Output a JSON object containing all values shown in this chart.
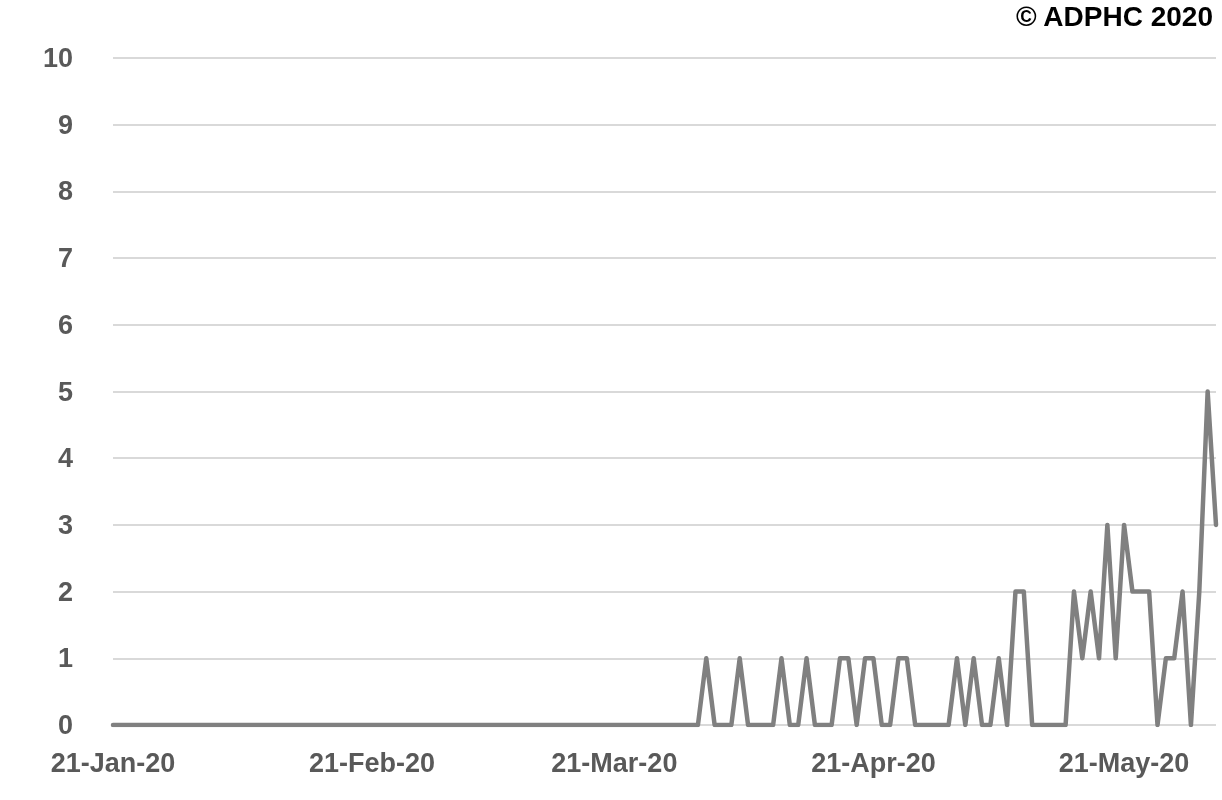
{
  "chart_data": {
    "type": "line",
    "annotations": [
      "© ADPHC 2020"
    ],
    "x": [
      "2020-01-21",
      "2020-01-22",
      "2020-01-23",
      "2020-01-24",
      "2020-01-25",
      "2020-01-26",
      "2020-01-27",
      "2020-01-28",
      "2020-01-29",
      "2020-01-30",
      "2020-01-31",
      "2020-02-01",
      "2020-02-02",
      "2020-02-03",
      "2020-02-04",
      "2020-02-05",
      "2020-02-06",
      "2020-02-07",
      "2020-02-08",
      "2020-02-09",
      "2020-02-10",
      "2020-02-11",
      "2020-02-12",
      "2020-02-13",
      "2020-02-14",
      "2020-02-15",
      "2020-02-16",
      "2020-02-17",
      "2020-02-18",
      "2020-02-19",
      "2020-02-20",
      "2020-02-21",
      "2020-02-22",
      "2020-02-23",
      "2020-02-24",
      "2020-02-25",
      "2020-02-26",
      "2020-02-27",
      "2020-02-28",
      "2020-02-29",
      "2020-03-01",
      "2020-03-02",
      "2020-03-03",
      "2020-03-04",
      "2020-03-05",
      "2020-03-06",
      "2020-03-07",
      "2020-03-08",
      "2020-03-09",
      "2020-03-10",
      "2020-03-11",
      "2020-03-12",
      "2020-03-13",
      "2020-03-14",
      "2020-03-15",
      "2020-03-16",
      "2020-03-17",
      "2020-03-18",
      "2020-03-19",
      "2020-03-20",
      "2020-03-21",
      "2020-03-22",
      "2020-03-23",
      "2020-03-24",
      "2020-03-25",
      "2020-03-26",
      "2020-03-27",
      "2020-03-28",
      "2020-03-29",
      "2020-03-30",
      "2020-03-31",
      "2020-04-01",
      "2020-04-02",
      "2020-04-03",
      "2020-04-04",
      "2020-04-05",
      "2020-04-06",
      "2020-04-07",
      "2020-04-08",
      "2020-04-09",
      "2020-04-10",
      "2020-04-11",
      "2020-04-12",
      "2020-04-13",
      "2020-04-14",
      "2020-04-15",
      "2020-04-16",
      "2020-04-17",
      "2020-04-18",
      "2020-04-19",
      "2020-04-20",
      "2020-04-21",
      "2020-04-22",
      "2020-04-23",
      "2020-04-24",
      "2020-04-25",
      "2020-04-26",
      "2020-04-27",
      "2020-04-28",
      "2020-04-29",
      "2020-04-30",
      "2020-05-01",
      "2020-05-02",
      "2020-05-03",
      "2020-05-04",
      "2020-05-05",
      "2020-05-06",
      "2020-05-07",
      "2020-05-08",
      "2020-05-09",
      "2020-05-10",
      "2020-05-11",
      "2020-05-12",
      "2020-05-13",
      "2020-05-14",
      "2020-05-15",
      "2020-05-16",
      "2020-05-17",
      "2020-05-18",
      "2020-05-19",
      "2020-05-20",
      "2020-05-21",
      "2020-05-22",
      "2020-05-23",
      "2020-05-24",
      "2020-05-25",
      "2020-05-26",
      "2020-05-27",
      "2020-05-28",
      "2020-05-29",
      "2020-05-30",
      "2020-05-31",
      "2020-06-01"
    ],
    "series": [
      {
        "color": "#808080",
        "values": [
          0,
          0,
          0,
          0,
          0,
          0,
          0,
          0,
          0,
          0,
          0,
          0,
          0,
          0,
          0,
          0,
          0,
          0,
          0,
          0,
          0,
          0,
          0,
          0,
          0,
          0,
          0,
          0,
          0,
          0,
          0,
          0,
          0,
          0,
          0,
          0,
          0,
          0,
          0,
          0,
          0,
          0,
          0,
          0,
          0,
          0,
          0,
          0,
          0,
          0,
          0,
          0,
          0,
          0,
          0,
          0,
          0,
          0,
          0,
          0,
          0,
          0,
          0,
          0,
          0,
          0,
          0,
          0,
          0,
          0,
          0,
          1,
          0,
          0,
          0,
          1,
          0,
          0,
          0,
          0,
          1,
          0,
          0,
          1,
          0,
          0,
          0,
          1,
          1,
          0,
          1,
          1,
          0,
          0,
          1,
          1,
          0,
          0,
          0,
          0,
          0,
          1,
          0,
          1,
          0,
          0,
          1,
          0,
          2,
          2,
          0,
          0,
          0,
          0,
          0,
          2,
          1,
          2,
          1,
          3,
          1,
          3,
          2,
          2,
          2,
          0,
          1,
          1,
          2,
          0,
          2,
          5,
          3
        ]
      }
    ],
    "xlim": [
      "2020-01-21",
      "2020-06-01"
    ],
    "xticks": [
      {
        "value": "2020-01-21",
        "label": "21-Jan-20"
      },
      {
        "value": "2020-02-21",
        "label": "21-Feb-20"
      },
      {
        "value": "2020-03-21",
        "label": "21-Mar-20"
      },
      {
        "value": "2020-04-21",
        "label": "21-Apr-20"
      },
      {
        "value": "2020-05-21",
        "label": "21-May-20"
      }
    ],
    "ylim": [
      0,
      10
    ],
    "yticks": [
      0,
      1,
      2,
      3,
      4,
      5,
      6,
      7,
      8,
      9,
      10
    ],
    "grid": "y",
    "marker": "none",
    "line_style": "solid"
  }
}
